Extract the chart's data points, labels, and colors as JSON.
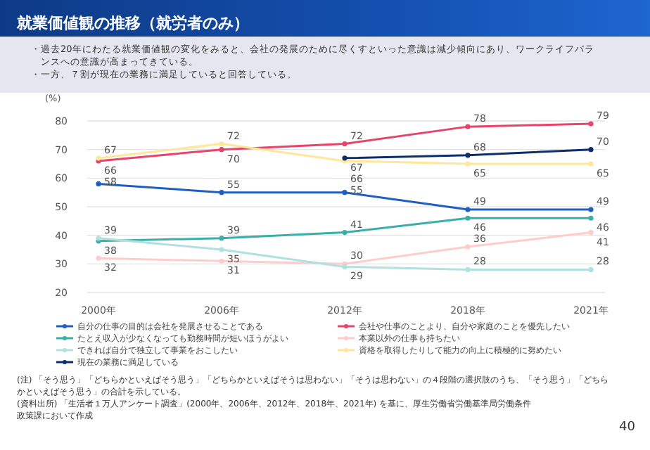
{
  "chart_data": {
    "type": "line",
    "title": "就業価値観の推移（就労者のみ）",
    "subtitle": "・過去20年にわたる就業価値観の変化をみると、会社の発展のために尽くすといった意識は減少傾向にあり、ワークライフバランスへの意識が高まってきている。・一方、７割が現在の業務に満足していると回答している。",
    "ylabel": "(%)",
    "categories": [
      "2000年",
      "2006年",
      "2012年",
      "2018年",
      "2021年"
    ],
    "series": [
      {
        "name": "自分の仕事の目的は会社を発展させることである",
        "color": "#1f5fbf",
        "values": [
          58,
          55,
          55,
          49,
          49
        ]
      },
      {
        "name": "会社や仕事のことより、自分や家庭のことを優先したい",
        "color": "#e8436a",
        "values": [
          66,
          70,
          72,
          78,
          79
        ]
      },
      {
        "name": "たとえ収入が少なくなっても勤務時間が短いほうがよい",
        "color": "#3aafa9",
        "values": [
          38,
          39,
          41,
          46,
          46
        ]
      },
      {
        "name": "本業以外の仕事も持ちたい",
        "color": "#ffcccc",
        "values": [
          32,
          31,
          30,
          36,
          41
        ]
      },
      {
        "name": "できれば自分で独立して事業をおこしたい",
        "color": "#b0e0e0",
        "values": [
          39,
          35,
          29,
          28,
          28
        ]
      },
      {
        "name": "資格を取得したりして能力の向上に積極的に努めたい",
        "color": "#ffe699",
        "values": [
          67,
          72,
          66,
          65,
          65
        ]
      },
      {
        "name": "現在の業務に満足している",
        "color": "#0d2d6b",
        "values": [
          null,
          null,
          67,
          68,
          70
        ]
      }
    ],
    "ylim": [
      20,
      80
    ],
    "yticks": [
      20,
      30,
      40,
      50,
      60,
      70,
      80
    ],
    "grid": "y",
    "legend": "bottom",
    "marker": "circle",
    "line_style": "solid",
    "data_labels": true,
    "annotations": [
      "(注) 「そう思う」「どちらかといえばそう思う」「どちらかといえばそうは思わない」「そうは思わない」の４段階の選択肢のうち、「そう思う」「どちらかといえばそう思う」の合計を示している。",
      "(資料出所) 「生活者１万人アンケート調査」(2000年、2006年、2012年、2018年、2021年) を基に、厚生労働省労働基準局労働条件政策課において作成",
      "40"
    ]
  }
}
